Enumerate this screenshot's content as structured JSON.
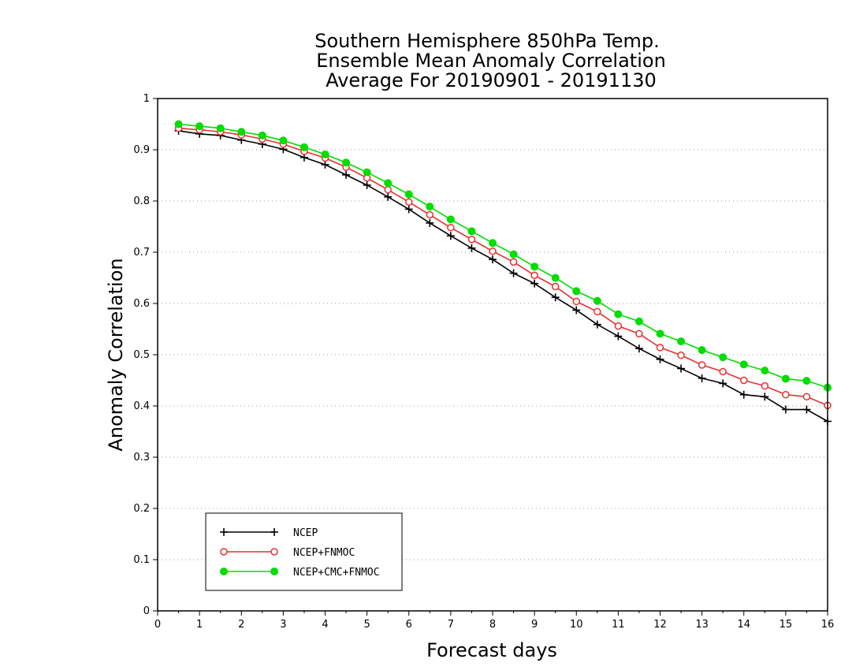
{
  "chart_data": {
    "type": "line",
    "title_lines": [
      "Southern Hemisphere 850hPa Temp.",
      "Ensemble Mean Anomaly Correlation",
      "Average For 20190901 - 20191130"
    ],
    "xlabel": "Forecast days",
    "ylabel": "Anomaly Correlation",
    "xlim": [
      0,
      16
    ],
    "ylim": [
      0,
      1
    ],
    "x_ticks": [
      "0",
      "1",
      "2",
      "3",
      "4",
      "5",
      "6",
      "7",
      "8",
      "9",
      "10",
      "11",
      "12",
      "13",
      "14",
      "15",
      "16"
    ],
    "y_ticks": [
      "0",
      "0.1",
      "0.2",
      "0.3",
      "0.4",
      "0.5",
      "0.6",
      "0.7",
      "0.8",
      "0.9",
      "1"
    ],
    "grid": "horizontal dotted",
    "legend_position": "bottom-left",
    "x": [
      0.5,
      1,
      1.5,
      2,
      2.5,
      3,
      3.5,
      4,
      4.5,
      5,
      5.5,
      6,
      6.5,
      7,
      7.5,
      8,
      8.5,
      9,
      9.5,
      10,
      10.5,
      11,
      11.5,
      12,
      12.5,
      13,
      13.5,
      14,
      14.5,
      15,
      15.5,
      16
    ],
    "series": [
      {
        "name": "NCEP",
        "color": "#000000",
        "marker": "plus",
        "values": [
          0.937,
          0.931,
          0.928,
          0.919,
          0.911,
          0.901,
          0.885,
          0.871,
          0.851,
          0.831,
          0.808,
          0.784,
          0.757,
          0.732,
          0.708,
          0.686,
          0.659,
          0.639,
          0.612,
          0.587,
          0.559,
          0.536,
          0.512,
          0.491,
          0.473,
          0.454,
          0.444,
          0.422,
          0.418,
          0.393,
          0.393,
          0.37
        ]
      },
      {
        "name": "NCEP+FNMOC",
        "color": "#e83030",
        "marker": "open-circle",
        "values": [
          0.942,
          0.939,
          0.935,
          0.929,
          0.921,
          0.911,
          0.897,
          0.884,
          0.866,
          0.845,
          0.822,
          0.798,
          0.773,
          0.748,
          0.725,
          0.702,
          0.681,
          0.655,
          0.633,
          0.604,
          0.584,
          0.556,
          0.541,
          0.514,
          0.499,
          0.48,
          0.467,
          0.45,
          0.439,
          0.422,
          0.418,
          0.401
        ]
      },
      {
        "name": "NCEP+CMC+FNMOC",
        "color": "#00dd00",
        "marker": "filled-circle",
        "values": [
          0.95,
          0.946,
          0.942,
          0.935,
          0.928,
          0.918,
          0.905,
          0.891,
          0.875,
          0.856,
          0.835,
          0.813,
          0.789,
          0.764,
          0.741,
          0.718,
          0.696,
          0.672,
          0.65,
          0.624,
          0.605,
          0.579,
          0.565,
          0.541,
          0.526,
          0.509,
          0.495,
          0.481,
          0.469,
          0.453,
          0.449,
          0.436
        ]
      }
    ]
  }
}
